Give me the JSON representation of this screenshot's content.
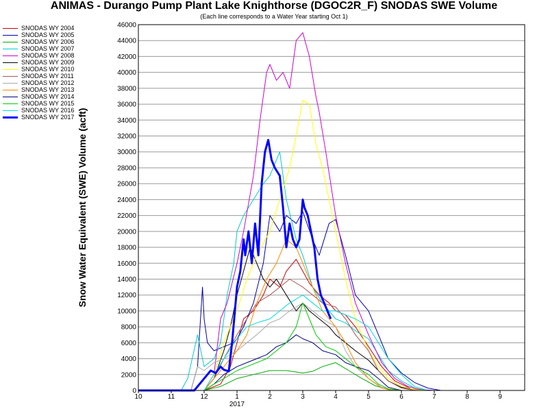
{
  "chart_data": {
    "type": "line",
    "title": "ANIMAS - Durango Pump Plant Lake Knighthorse (DGOC2R_F) SNODAS SWE Volume",
    "subtitle": "(Each line corresponds to a Water Year starting Oct 1)",
    "ylabel": "Snow Water Equivalent (SWE) Volume (acft)",
    "xlabel": "",
    "x_year_label": "2017",
    "ylim": [
      0,
      46000
    ],
    "xlim": [
      0,
      11.75
    ],
    "y_ticks": [
      0,
      2000,
      4000,
      6000,
      8000,
      10000,
      12000,
      14000,
      16000,
      18000,
      20000,
      22000,
      24000,
      26000,
      28000,
      30000,
      32000,
      34000,
      36000,
      38000,
      40000,
      42000,
      44000,
      46000
    ],
    "x_ticks": [
      {
        "x": 0,
        "label": "10"
      },
      {
        "x": 1,
        "label": "11"
      },
      {
        "x": 2,
        "label": "12"
      },
      {
        "x": 3,
        "label": "1"
      },
      {
        "x": 4,
        "label": "2"
      },
      {
        "x": 5,
        "label": "3"
      },
      {
        "x": 6,
        "label": "4"
      },
      {
        "x": 7,
        "label": "5"
      },
      {
        "x": 8,
        "label": "6"
      },
      {
        "x": 9,
        "label": "7"
      },
      {
        "x": 10,
        "label": "8"
      },
      {
        "x": 11,
        "label": "9"
      }
    ],
    "grid": true,
    "legend_position": "left",
    "series": [
      {
        "name": "SNODAS WY 2004",
        "color": "#cc0000",
        "width": 1,
        "x": [
          0,
          2.0,
          2.5,
          2.8,
          3.0,
          3.2,
          3.5,
          3.8,
          4.0,
          4.3,
          4.5,
          4.8,
          5.0,
          5.2,
          5.5,
          5.8,
          6.0,
          6.3,
          6.6,
          7.0,
          7.4,
          7.8,
          8.3,
          8.8
        ],
        "y": [
          0,
          0,
          800,
          3000,
          6000,
          9000,
          10000,
          12000,
          14000,
          13000,
          15000,
          16500,
          15000,
          13500,
          12000,
          11000,
          10000,
          9500,
          8000,
          5500,
          3000,
          1200,
          200,
          0
        ]
      },
      {
        "name": "SNODAS WY 2005",
        "color": "#0000aa",
        "width": 1,
        "x": [
          0,
          1.6,
          1.8,
          1.95,
          2.0,
          2.1,
          2.3,
          2.6,
          2.9,
          3.0,
          3.2,
          3.5,
          3.8,
          4.0,
          4.3,
          4.5,
          4.8,
          5.0,
          5.3,
          5.5,
          5.8,
          6.0,
          6.3,
          6.6,
          7.0,
          7.3,
          7.6,
          8.0,
          8.4,
          8.8,
          9.2
        ],
        "y": [
          0,
          0,
          3000,
          13000,
          9000,
          6000,
          5000,
          5500,
          6000,
          6500,
          8000,
          11000,
          16000,
          22000,
          20000,
          22000,
          21000,
          22500,
          19000,
          17000,
          21000,
          21500,
          17000,
          12000,
          10000,
          7000,
          4000,
          2200,
          1000,
          300,
          0
        ]
      },
      {
        "name": "SNODAS WY 2006",
        "color": "#00aa00",
        "width": 1,
        "x": [
          0,
          2.0,
          2.5,
          3.0,
          3.5,
          4.0,
          4.5,
          5.0,
          5.3,
          5.6,
          6.0,
          6.4,
          6.8,
          7.2,
          7.6,
          8.0
        ],
        "y": [
          0,
          0,
          500,
          1500,
          2000,
          2500,
          2500,
          2200,
          2400,
          3000,
          3500,
          2500,
          1500,
          600,
          100,
          0
        ]
      },
      {
        "name": "SNODAS WY 2007",
        "color": "#00cccc",
        "width": 1,
        "x": [
          0,
          1.3,
          1.5,
          1.8,
          2.0,
          2.3,
          2.5,
          2.7,
          2.9,
          3.0,
          3.2,
          3.5,
          3.8,
          4.0,
          4.3,
          4.5,
          4.8,
          5.0,
          5.3,
          5.6,
          6.0,
          6.3,
          6.6,
          7.0,
          7.3,
          7.6,
          8.0,
          8.4,
          8.8
        ],
        "y": [
          0,
          0,
          1500,
          7000,
          3000,
          4000,
          6000,
          12000,
          16000,
          20000,
          22000,
          24000,
          26000,
          27000,
          30000,
          24000,
          19000,
          17000,
          13000,
          11000,
          9000,
          8500,
          7500,
          6500,
          4500,
          2500,
          1200,
          300,
          0
        ]
      },
      {
        "name": "SNODAS WY 2008",
        "color": "#cc00cc",
        "width": 1,
        "x": [
          0,
          2.0,
          2.3,
          2.5,
          2.7,
          3.0,
          3.2,
          3.5,
          3.7,
          3.9,
          4.0,
          4.2,
          4.4,
          4.6,
          4.8,
          5.0,
          5.2,
          5.4,
          5.5,
          5.7,
          6.0,
          6.3,
          6.6,
          7.0,
          7.4,
          7.8,
          8.2,
          8.6,
          9.0
        ],
        "y": [
          0,
          0,
          2000,
          9000,
          11000,
          16000,
          20000,
          27000,
          34000,
          40000,
          41000,
          39000,
          40000,
          38000,
          44000,
          45000,
          42000,
          37000,
          35000,
          30000,
          22000,
          16000,
          11000,
          7000,
          3500,
          1500,
          500,
          100,
          0
        ]
      },
      {
        "name": "SNODAS WY 2009",
        "color": "#000000",
        "width": 1,
        "x": [
          0,
          2.0,
          2.3,
          2.6,
          2.8,
          3.0,
          3.2,
          3.4,
          3.6,
          3.8,
          4.0,
          4.2,
          4.5,
          4.8,
          5.0,
          5.2,
          5.5,
          5.8,
          6.0,
          6.3,
          6.6,
          7.0,
          7.3,
          7.6,
          8.0,
          8.4,
          8.8
        ],
        "y": [
          0,
          0,
          1500,
          5000,
          8000,
          12000,
          15000,
          18000,
          16000,
          14000,
          13000,
          14000,
          12000,
          10000,
          11000,
          10000,
          9000,
          8000,
          7000,
          6000,
          5000,
          3800,
          2500,
          1200,
          400,
          100,
          0
        ]
      },
      {
        "name": "SNODAS WY 2010",
        "color": "#ffff00",
        "width": 1,
        "x": [
          0,
          2.0,
          2.3,
          2.6,
          3.0,
          3.3,
          3.6,
          4.0,
          4.3,
          4.6,
          4.8,
          5.0,
          5.2,
          5.4,
          5.6,
          5.8,
          6.0,
          6.3,
          6.6,
          7.0,
          7.3,
          7.6,
          8.0,
          8.4,
          8.8
        ],
        "y": [
          0,
          0,
          2000,
          6000,
          10000,
          14000,
          17000,
          20000,
          24000,
          28000,
          32000,
          36500,
          36000,
          31000,
          28000,
          24000,
          20000,
          14000,
          9000,
          5000,
          3000,
          1500,
          500,
          100,
          0
        ]
      },
      {
        "name": "SNODAS WY 2011",
        "color": "#aa5555",
        "width": 1,
        "x": [
          0,
          2.0,
          2.3,
          2.6,
          3.0,
          3.3,
          3.6,
          4.0,
          4.3,
          4.6,
          5.0,
          5.3,
          5.6,
          6.0,
          6.3,
          6.6,
          7.0,
          7.3,
          7.6,
          8.0,
          8.4
        ],
        "y": [
          0,
          0,
          1500,
          4000,
          7000,
          9000,
          11000,
          12000,
          13000,
          14000,
          13000,
          12000,
          11000,
          10500,
          9000,
          7000,
          5000,
          2500,
          1200,
          300,
          0
        ]
      },
      {
        "name": "SNODAS WY 2012",
        "color": "#aaaaaa",
        "width": 1,
        "x": [
          0,
          1.6,
          1.8,
          2.0,
          2.3,
          2.6,
          3.0,
          3.3,
          3.6,
          4.0,
          4.3,
          4.6,
          5.0,
          5.3,
          5.6,
          6.0,
          6.3,
          6.6,
          7.0,
          7.4,
          7.8
        ],
        "y": [
          0,
          0,
          3000,
          2500,
          3500,
          4000,
          5000,
          6000,
          7000,
          8500,
          9000,
          10000,
          11000,
          10000,
          9000,
          8000,
          5000,
          3000,
          1500,
          400,
          0
        ]
      },
      {
        "name": "SNODAS WY 2013",
        "color": "#ff8800",
        "width": 1,
        "x": [
          0,
          2.0,
          2.3,
          2.6,
          3.0,
          3.3,
          3.6,
          3.9,
          4.2,
          4.5,
          4.8,
          5.0,
          5.3,
          5.6,
          6.0,
          6.3,
          6.6,
          7.0,
          7.4,
          7.8
        ],
        "y": [
          0,
          0,
          1500,
          3000,
          5000,
          7000,
          11000,
          14000,
          16000,
          19000,
          18000,
          16000,
          13000,
          10000,
          8000,
          6000,
          3500,
          1500,
          300,
          0
        ]
      },
      {
        "name": "SNODAS WY 2014",
        "color": "#000080",
        "width": 1,
        "x": [
          0,
          2.0,
          2.3,
          2.6,
          3.0,
          3.3,
          3.6,
          3.9,
          4.2,
          4.5,
          4.8,
          5.0,
          5.3,
          5.6,
          6.0,
          6.3,
          6.6,
          7.0,
          7.3,
          7.6,
          8.0
        ],
        "y": [
          0,
          0,
          800,
          2000,
          3000,
          3500,
          4000,
          4500,
          5500,
          6000,
          7000,
          6500,
          6000,
          5000,
          4500,
          3500,
          3000,
          2500,
          1500,
          400,
          0
        ]
      },
      {
        "name": "SNODAS WY 2015",
        "color": "#00cc00",
        "width": 1,
        "x": [
          0,
          2.0,
          2.3,
          2.6,
          3.0,
          3.3,
          3.6,
          3.9,
          4.2,
          4.5,
          4.8,
          5.0,
          5.2,
          5.4,
          5.7,
          6.0,
          6.3,
          6.6,
          7.0,
          7.3,
          7.6,
          8.0
        ],
        "y": [
          0,
          0,
          800,
          1500,
          2500,
          3000,
          3500,
          4000,
          5000,
          6000,
          8000,
          11000,
          9000,
          7000,
          5500,
          5000,
          4000,
          3000,
          2000,
          800,
          200,
          0
        ]
      },
      {
        "name": "SNODAS WY 2016",
        "color": "#00dddd",
        "width": 1,
        "x": [
          0,
          2.0,
          2.3,
          2.6,
          3.0,
          3.3,
          3.6,
          4.0,
          4.3,
          4.6,
          5.0,
          5.3,
          5.6,
          6.0,
          6.3,
          6.6,
          7.0,
          7.3,
          7.6,
          8.0,
          8.4,
          8.8
        ],
        "y": [
          0,
          0,
          2000,
          4000,
          6500,
          8000,
          8500,
          9000,
          10000,
          11000,
          12000,
          11000,
          10000,
          10000,
          9500,
          9000,
          8000,
          6000,
          4000,
          2000,
          500,
          0
        ]
      },
      {
        "name": "SNODAS WY 2017",
        "color": "#0000ff",
        "width": 3,
        "x": [
          0,
          1.7,
          1.9,
          2.1,
          2.2,
          2.35,
          2.5,
          2.6,
          2.75,
          2.85,
          3.0,
          3.1,
          3.2,
          3.25,
          3.35,
          3.45,
          3.55,
          3.65,
          3.75,
          3.85,
          3.95,
          4.05,
          4.15,
          4.3,
          4.4,
          4.5,
          4.6,
          4.7,
          4.8,
          4.9,
          5.0,
          5.05,
          5.15,
          5.25,
          5.35,
          5.45,
          5.55,
          5.65,
          5.75,
          5.85
        ],
        "y": [
          0,
          0,
          1000,
          2000,
          2500,
          2200,
          3000,
          2600,
          2400,
          6000,
          13000,
          15000,
          19000,
          17000,
          20000,
          16000,
          21000,
          17000,
          26000,
          30000,
          31500,
          29000,
          28000,
          27000,
          23000,
          18000,
          21000,
          19000,
          18000,
          19000,
          24000,
          23000,
          22000,
          20000,
          18000,
          14000,
          12000,
          11000,
          10000,
          9000
        ]
      }
    ]
  }
}
